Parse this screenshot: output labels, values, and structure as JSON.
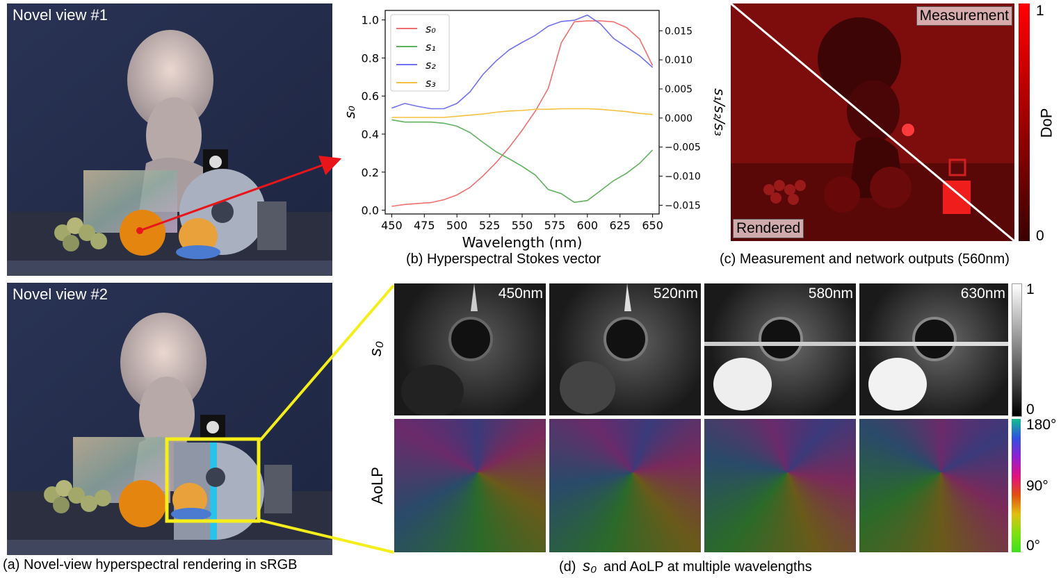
{
  "panel_a": {
    "view1_label": "Novel view #1",
    "view2_label": "Novel view #2",
    "caption": "(a) Novel-view hyperspectral rendering in sRGB"
  },
  "panel_b": {
    "caption": "(b) Hyperspectral Stokes vector"
  },
  "panel_c": {
    "measurement_label": "Measurement",
    "rendered_label": "Rendered",
    "colorbar_label": "DoP",
    "colorbar_max": "1",
    "colorbar_min": "0",
    "caption": "(c) Measurement and network outputs (560nm)"
  },
  "panel_d": {
    "row_label_s0": "s₀",
    "row_label_aolp": "AoLP",
    "wavelengths": [
      "450nm",
      "520nm",
      "580nm",
      "630nm"
    ],
    "s0_cb_max": "1",
    "s0_cb_min": "0",
    "aolp_cb_top": "180°",
    "aolp_cb_mid": "90°",
    "aolp_cb_bot": "0°",
    "caption_prefix": "(d)",
    "caption_sym": "s₀",
    "caption_rest": "and AoLP at multiple wavelengths"
  },
  "chart_data": {
    "type": "line",
    "xlabel": "Wavelength (nm)",
    "ylabel": "s₀",
    "y2label": "s₁/s₂/s₃",
    "xlim": [
      445,
      655
    ],
    "ylim": [
      -0.02,
      1.05
    ],
    "y2lim": [
      -0.0165,
      0.0185
    ],
    "x_ticks": [
      450,
      475,
      500,
      525,
      550,
      575,
      600,
      625,
      650
    ],
    "y_ticks": [
      "0.0",
      "0.2",
      "0.4",
      "0.6",
      "0.8",
      "1.0"
    ],
    "y2_ticks": [
      "−0.015",
      "−0.010",
      "−0.005",
      "0.000",
      "0.005",
      "0.010",
      "0.015"
    ],
    "y_tick_values": [
      0,
      0.2,
      0.4,
      0.6,
      0.8,
      1.0
    ],
    "y2_tick_values": [
      -0.015,
      -0.01,
      -0.005,
      0.0,
      0.005,
      0.01,
      0.015
    ],
    "legend_position": "top-left",
    "x": [
      450,
      460,
      470,
      480,
      490,
      500,
      510,
      520,
      530,
      540,
      550,
      560,
      570,
      580,
      590,
      600,
      610,
      620,
      630,
      640,
      650
    ],
    "series": [
      {
        "name": "s₀",
        "axis": "left",
        "color": "#f07070",
        "values": [
          0.02,
          0.03,
          0.035,
          0.04,
          0.055,
          0.08,
          0.12,
          0.18,
          0.25,
          0.33,
          0.42,
          0.52,
          0.64,
          0.88,
          0.99,
          0.995,
          0.995,
          0.99,
          0.96,
          0.9,
          0.76
        ]
      },
      {
        "name": "s₁",
        "axis": "right",
        "color": "#5fb35f",
        "values": [
          -0.0003,
          -0.0007,
          -0.0007,
          -0.0007,
          -0.0009,
          -0.0014,
          -0.0025,
          -0.0042,
          -0.0058,
          -0.007,
          -0.0083,
          -0.0098,
          -0.0123,
          -0.013,
          -0.0145,
          -0.0142,
          -0.0125,
          -0.0108,
          -0.0095,
          -0.0078,
          -0.0055
        ]
      },
      {
        "name": "s₂",
        "axis": "right",
        "color": "#7070f0",
        "values": [
          0.0017,
          0.0025,
          0.002,
          0.0016,
          0.0016,
          0.0025,
          0.0045,
          0.0075,
          0.0098,
          0.0117,
          0.013,
          0.0142,
          0.0158,
          0.0166,
          0.0168,
          0.0177,
          0.0162,
          0.0137,
          0.0122,
          0.0107,
          0.0087
        ]
      },
      {
        "name": "s₃",
        "axis": "right",
        "color": "#f5c040",
        "values": [
          0.0001,
          0.0001,
          0.0001,
          0.0001,
          0.0001,
          0.0003,
          0.0005,
          0.0007,
          0.001,
          0.0012,
          0.0013,
          0.0015,
          0.0015,
          0.0016,
          0.0016,
          0.0016,
          0.0015,
          0.0013,
          0.0011,
          0.0008,
          0.0006
        ]
      }
    ]
  }
}
